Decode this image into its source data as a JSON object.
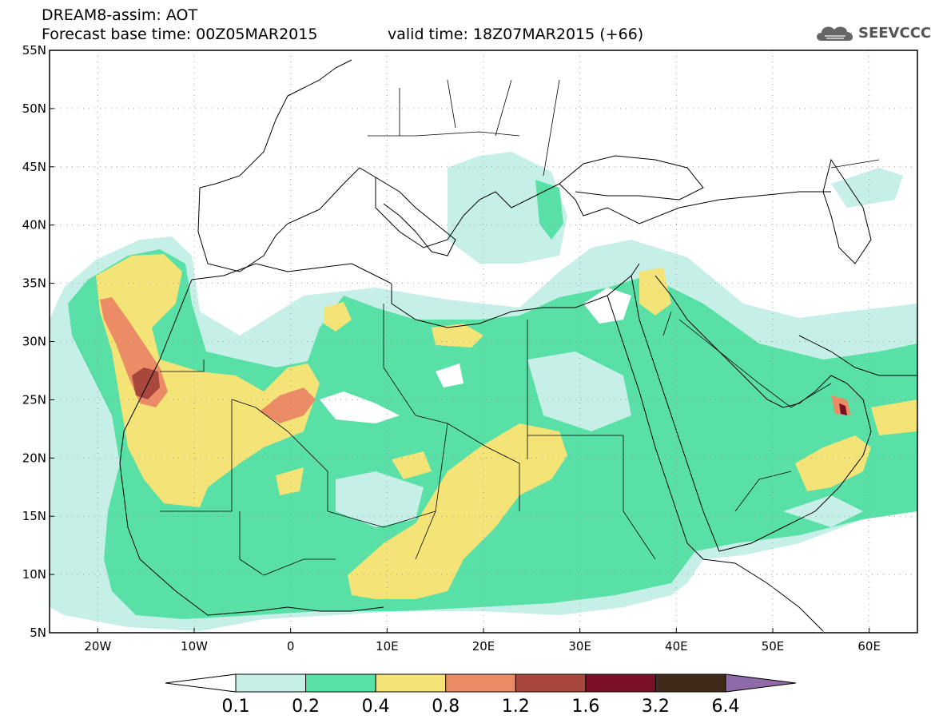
{
  "header": {
    "model_title": "DREAM8-assim: AOT",
    "base_time": "Forecast base time: 00Z05MAR2015",
    "valid_time": "valid time: 18Z07MAR2015 (+66)"
  },
  "logo": {
    "text": "SEEVCCC",
    "icon": "cloud-icon"
  },
  "map": {
    "lon_range": [
      -25,
      65
    ],
    "lat_range": [
      5,
      55
    ],
    "lat_labels": [
      "55N",
      "50N",
      "45N",
      "40N",
      "35N",
      "30N",
      "25N",
      "20N",
      "15N",
      "10N",
      "5N"
    ],
    "lon_labels": [
      "20W",
      "10W",
      "0",
      "10E",
      "20E",
      "30E",
      "40E",
      "50E",
      "60E"
    ]
  },
  "legend": {
    "bins": [
      {
        "color": "#c6efe8"
      },
      {
        "color": "#58e0a6"
      },
      {
        "color": "#f4e377"
      },
      {
        "color": "#ec8c66"
      },
      {
        "color": "#a8473b"
      },
      {
        "color": "#7a0f26"
      },
      {
        "color": "#402a18"
      }
    ],
    "over_color": "#8e6aa8",
    "under_color": "#ffffff",
    "labels": [
      "0.1",
      "0.2",
      "0.4",
      "0.8",
      "1.2",
      "1.6",
      "3.2",
      "6.4"
    ]
  }
}
